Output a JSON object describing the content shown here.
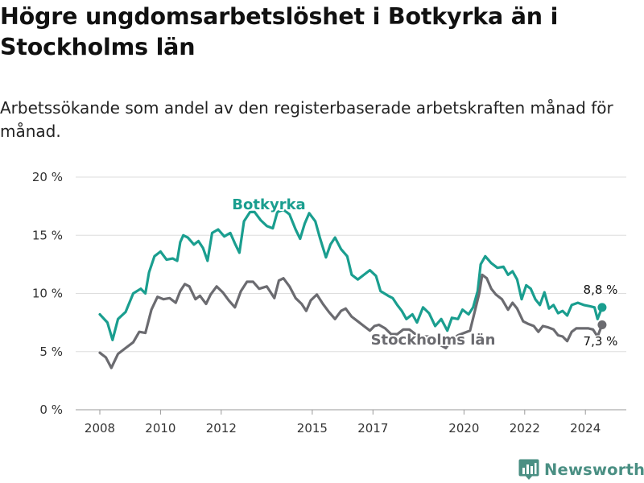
{
  "title": "Högre ungdomsarbetslöshet i Botkyrka än i Stockholms län",
  "subtitle": "Arbetssökande som andel av den registerbaserade arbetskraften månad för månad.",
  "brand": {
    "name": "Newsworthy",
    "icon": "bar-chart-icon"
  },
  "chart_data": {
    "type": "line",
    "title": "Högre ungdomsarbetslöshet i Botkyrka än i Stockholms län",
    "subtitle": "Arbetssökande som andel av den registerbaserade arbetskraften månad för månad.",
    "xlabel": "",
    "ylabel": "",
    "ylim": [
      0,
      20
    ],
    "xlim": [
      2007.5,
      2025.0
    ],
    "y_ticks": [
      0,
      5,
      10,
      15,
      20
    ],
    "y_tick_labels": [
      "0 %",
      "5 %",
      "10 %",
      "15 %",
      "20 %"
    ],
    "x_ticks": [
      2008,
      2010,
      2012,
      2015,
      2017,
      2020,
      2022,
      2024
    ],
    "x_tick_labels": [
      "2008",
      "2010",
      "2012",
      "2015",
      "2017",
      "2020",
      "2022",
      "2024"
    ],
    "grid": true,
    "series": [
      {
        "name": "Botkyrka",
        "color": "#1a9e8f",
        "end_label": "8,8 %",
        "points": [
          [
            2008.0,
            8.2
          ],
          [
            2008.25,
            7.5
          ],
          [
            2008.42,
            6.0
          ],
          [
            2008.6,
            7.8
          ],
          [
            2008.85,
            8.4
          ],
          [
            2009.1,
            10.0
          ],
          [
            2009.35,
            10.4
          ],
          [
            2009.5,
            10.0
          ],
          [
            2009.62,
            11.8
          ],
          [
            2009.8,
            13.2
          ],
          [
            2010.0,
            13.6
          ],
          [
            2010.2,
            12.9
          ],
          [
            2010.4,
            13.0
          ],
          [
            2010.55,
            12.8
          ],
          [
            2010.65,
            14.4
          ],
          [
            2010.75,
            15.0
          ],
          [
            2010.9,
            14.8
          ],
          [
            2011.1,
            14.2
          ],
          [
            2011.25,
            14.5
          ],
          [
            2011.4,
            13.9
          ],
          [
            2011.55,
            12.8
          ],
          [
            2011.7,
            15.2
          ],
          [
            2011.9,
            15.5
          ],
          [
            2012.1,
            14.9
          ],
          [
            2012.3,
            15.2
          ],
          [
            2012.45,
            14.3
          ],
          [
            2012.6,
            13.5
          ],
          [
            2012.75,
            16.2
          ],
          [
            2012.95,
            17.0
          ],
          [
            2013.1,
            17.0
          ],
          [
            2013.3,
            16.3
          ],
          [
            2013.5,
            15.8
          ],
          [
            2013.7,
            15.6
          ],
          [
            2013.85,
            17.0
          ],
          [
            2014.05,
            17.2
          ],
          [
            2014.25,
            16.8
          ],
          [
            2014.45,
            15.5
          ],
          [
            2014.6,
            14.7
          ],
          [
            2014.75,
            16.0
          ],
          [
            2014.9,
            16.9
          ],
          [
            2015.1,
            16.2
          ],
          [
            2015.25,
            14.8
          ],
          [
            2015.45,
            13.1
          ],
          [
            2015.6,
            14.2
          ],
          [
            2015.75,
            14.8
          ],
          [
            2015.95,
            13.8
          ],
          [
            2016.15,
            13.2
          ],
          [
            2016.3,
            11.6
          ],
          [
            2016.5,
            11.2
          ],
          [
            2016.7,
            11.6
          ],
          [
            2016.9,
            12.0
          ],
          [
            2017.1,
            11.5
          ],
          [
            2017.25,
            10.2
          ],
          [
            2017.5,
            9.8
          ],
          [
            2017.65,
            9.6
          ],
          [
            2017.8,
            9.0
          ],
          [
            2017.95,
            8.5
          ],
          [
            2018.1,
            7.8
          ],
          [
            2018.3,
            8.2
          ],
          [
            2018.45,
            7.5
          ],
          [
            2018.65,
            8.8
          ],
          [
            2018.85,
            8.3
          ],
          [
            2019.05,
            7.2
          ],
          [
            2019.25,
            7.8
          ],
          [
            2019.45,
            6.8
          ],
          [
            2019.6,
            7.9
          ],
          [
            2019.8,
            7.8
          ],
          [
            2019.95,
            8.6
          ],
          [
            2020.15,
            8.2
          ],
          [
            2020.3,
            8.8
          ],
          [
            2020.45,
            10.2
          ],
          [
            2020.55,
            12.5
          ],
          [
            2020.7,
            13.2
          ],
          [
            2020.9,
            12.6
          ],
          [
            2021.1,
            12.2
          ],
          [
            2021.3,
            12.3
          ],
          [
            2021.45,
            11.6
          ],
          [
            2021.6,
            11.9
          ],
          [
            2021.75,
            11.2
          ],
          [
            2021.9,
            9.5
          ],
          [
            2022.05,
            10.7
          ],
          [
            2022.2,
            10.4
          ],
          [
            2022.35,
            9.5
          ],
          [
            2022.5,
            9.0
          ],
          [
            2022.65,
            10.1
          ],
          [
            2022.8,
            8.7
          ],
          [
            2022.95,
            9.0
          ],
          [
            2023.1,
            8.3
          ],
          [
            2023.25,
            8.5
          ],
          [
            2023.4,
            8.1
          ],
          [
            2023.55,
            9.0
          ],
          [
            2023.75,
            9.2
          ],
          [
            2023.95,
            9.0
          ],
          [
            2024.15,
            8.9
          ],
          [
            2024.3,
            8.8
          ],
          [
            2024.4,
            7.8
          ],
          [
            2024.55,
            8.8
          ]
        ]
      },
      {
        "name": "Stockholms län",
        "color": "#6b6b70",
        "end_label": "7,3 %",
        "points": [
          [
            2008.0,
            4.9
          ],
          [
            2008.2,
            4.5
          ],
          [
            2008.38,
            3.6
          ],
          [
            2008.6,
            4.8
          ],
          [
            2008.85,
            5.3
          ],
          [
            2009.1,
            5.8
          ],
          [
            2009.3,
            6.7
          ],
          [
            2009.5,
            6.6
          ],
          [
            2009.7,
            8.6
          ],
          [
            2009.9,
            9.7
          ],
          [
            2010.1,
            9.5
          ],
          [
            2010.3,
            9.6
          ],
          [
            2010.5,
            9.2
          ],
          [
            2010.65,
            10.2
          ],
          [
            2010.8,
            10.8
          ],
          [
            2010.95,
            10.6
          ],
          [
            2011.15,
            9.5
          ],
          [
            2011.3,
            9.8
          ],
          [
            2011.5,
            9.1
          ],
          [
            2011.65,
            9.9
          ],
          [
            2011.85,
            10.6
          ],
          [
            2012.05,
            10.1
          ],
          [
            2012.25,
            9.4
          ],
          [
            2012.45,
            8.8
          ],
          [
            2012.65,
            10.2
          ],
          [
            2012.85,
            11.0
          ],
          [
            2013.05,
            11.0
          ],
          [
            2013.25,
            10.4
          ],
          [
            2013.5,
            10.6
          ],
          [
            2013.75,
            9.6
          ],
          [
            2013.9,
            11.1
          ],
          [
            2014.05,
            11.3
          ],
          [
            2014.25,
            10.6
          ],
          [
            2014.45,
            9.6
          ],
          [
            2014.65,
            9.1
          ],
          [
            2014.8,
            8.5
          ],
          [
            2014.95,
            9.4
          ],
          [
            2015.15,
            9.9
          ],
          [
            2015.35,
            9.1
          ],
          [
            2015.55,
            8.4
          ],
          [
            2015.75,
            7.8
          ],
          [
            2015.95,
            8.5
          ],
          [
            2016.1,
            8.7
          ],
          [
            2016.3,
            8.0
          ],
          [
            2016.5,
            7.6
          ],
          [
            2016.7,
            7.2
          ],
          [
            2016.9,
            6.8
          ],
          [
            2017.05,
            7.2
          ],
          [
            2017.2,
            7.3
          ],
          [
            2017.4,
            7.0
          ],
          [
            2017.6,
            6.5
          ],
          [
            2017.8,
            6.5
          ],
          [
            2018.0,
            6.9
          ],
          [
            2018.2,
            6.9
          ],
          [
            2018.4,
            6.5
          ],
          [
            2018.6,
            6.3
          ],
          [
            2018.8,
            6.3
          ],
          [
            2019.0,
            6.2
          ],
          [
            2019.2,
            5.6
          ],
          [
            2019.4,
            5.3
          ],
          [
            2019.6,
            6.0
          ],
          [
            2019.8,
            6.4
          ],
          [
            2020.0,
            6.6
          ],
          [
            2020.2,
            6.8
          ],
          [
            2020.35,
            8.4
          ],
          [
            2020.5,
            10.0
          ],
          [
            2020.6,
            11.6
          ],
          [
            2020.75,
            11.3
          ],
          [
            2020.9,
            10.4
          ],
          [
            2021.05,
            9.9
          ],
          [
            2021.25,
            9.5
          ],
          [
            2021.45,
            8.6
          ],
          [
            2021.6,
            9.2
          ],
          [
            2021.75,
            8.7
          ],
          [
            2021.95,
            7.6
          ],
          [
            2022.1,
            7.4
          ],
          [
            2022.3,
            7.2
          ],
          [
            2022.45,
            6.7
          ],
          [
            2022.6,
            7.2
          ],
          [
            2022.75,
            7.1
          ],
          [
            2022.95,
            6.9
          ],
          [
            2023.1,
            6.4
          ],
          [
            2023.25,
            6.3
          ],
          [
            2023.4,
            5.9
          ],
          [
            2023.55,
            6.7
          ],
          [
            2023.7,
            7.0
          ],
          [
            2023.9,
            7.0
          ],
          [
            2024.1,
            7.0
          ],
          [
            2024.25,
            6.9
          ],
          [
            2024.4,
            6.3
          ],
          [
            2024.55,
            7.3
          ]
        ]
      }
    ]
  }
}
